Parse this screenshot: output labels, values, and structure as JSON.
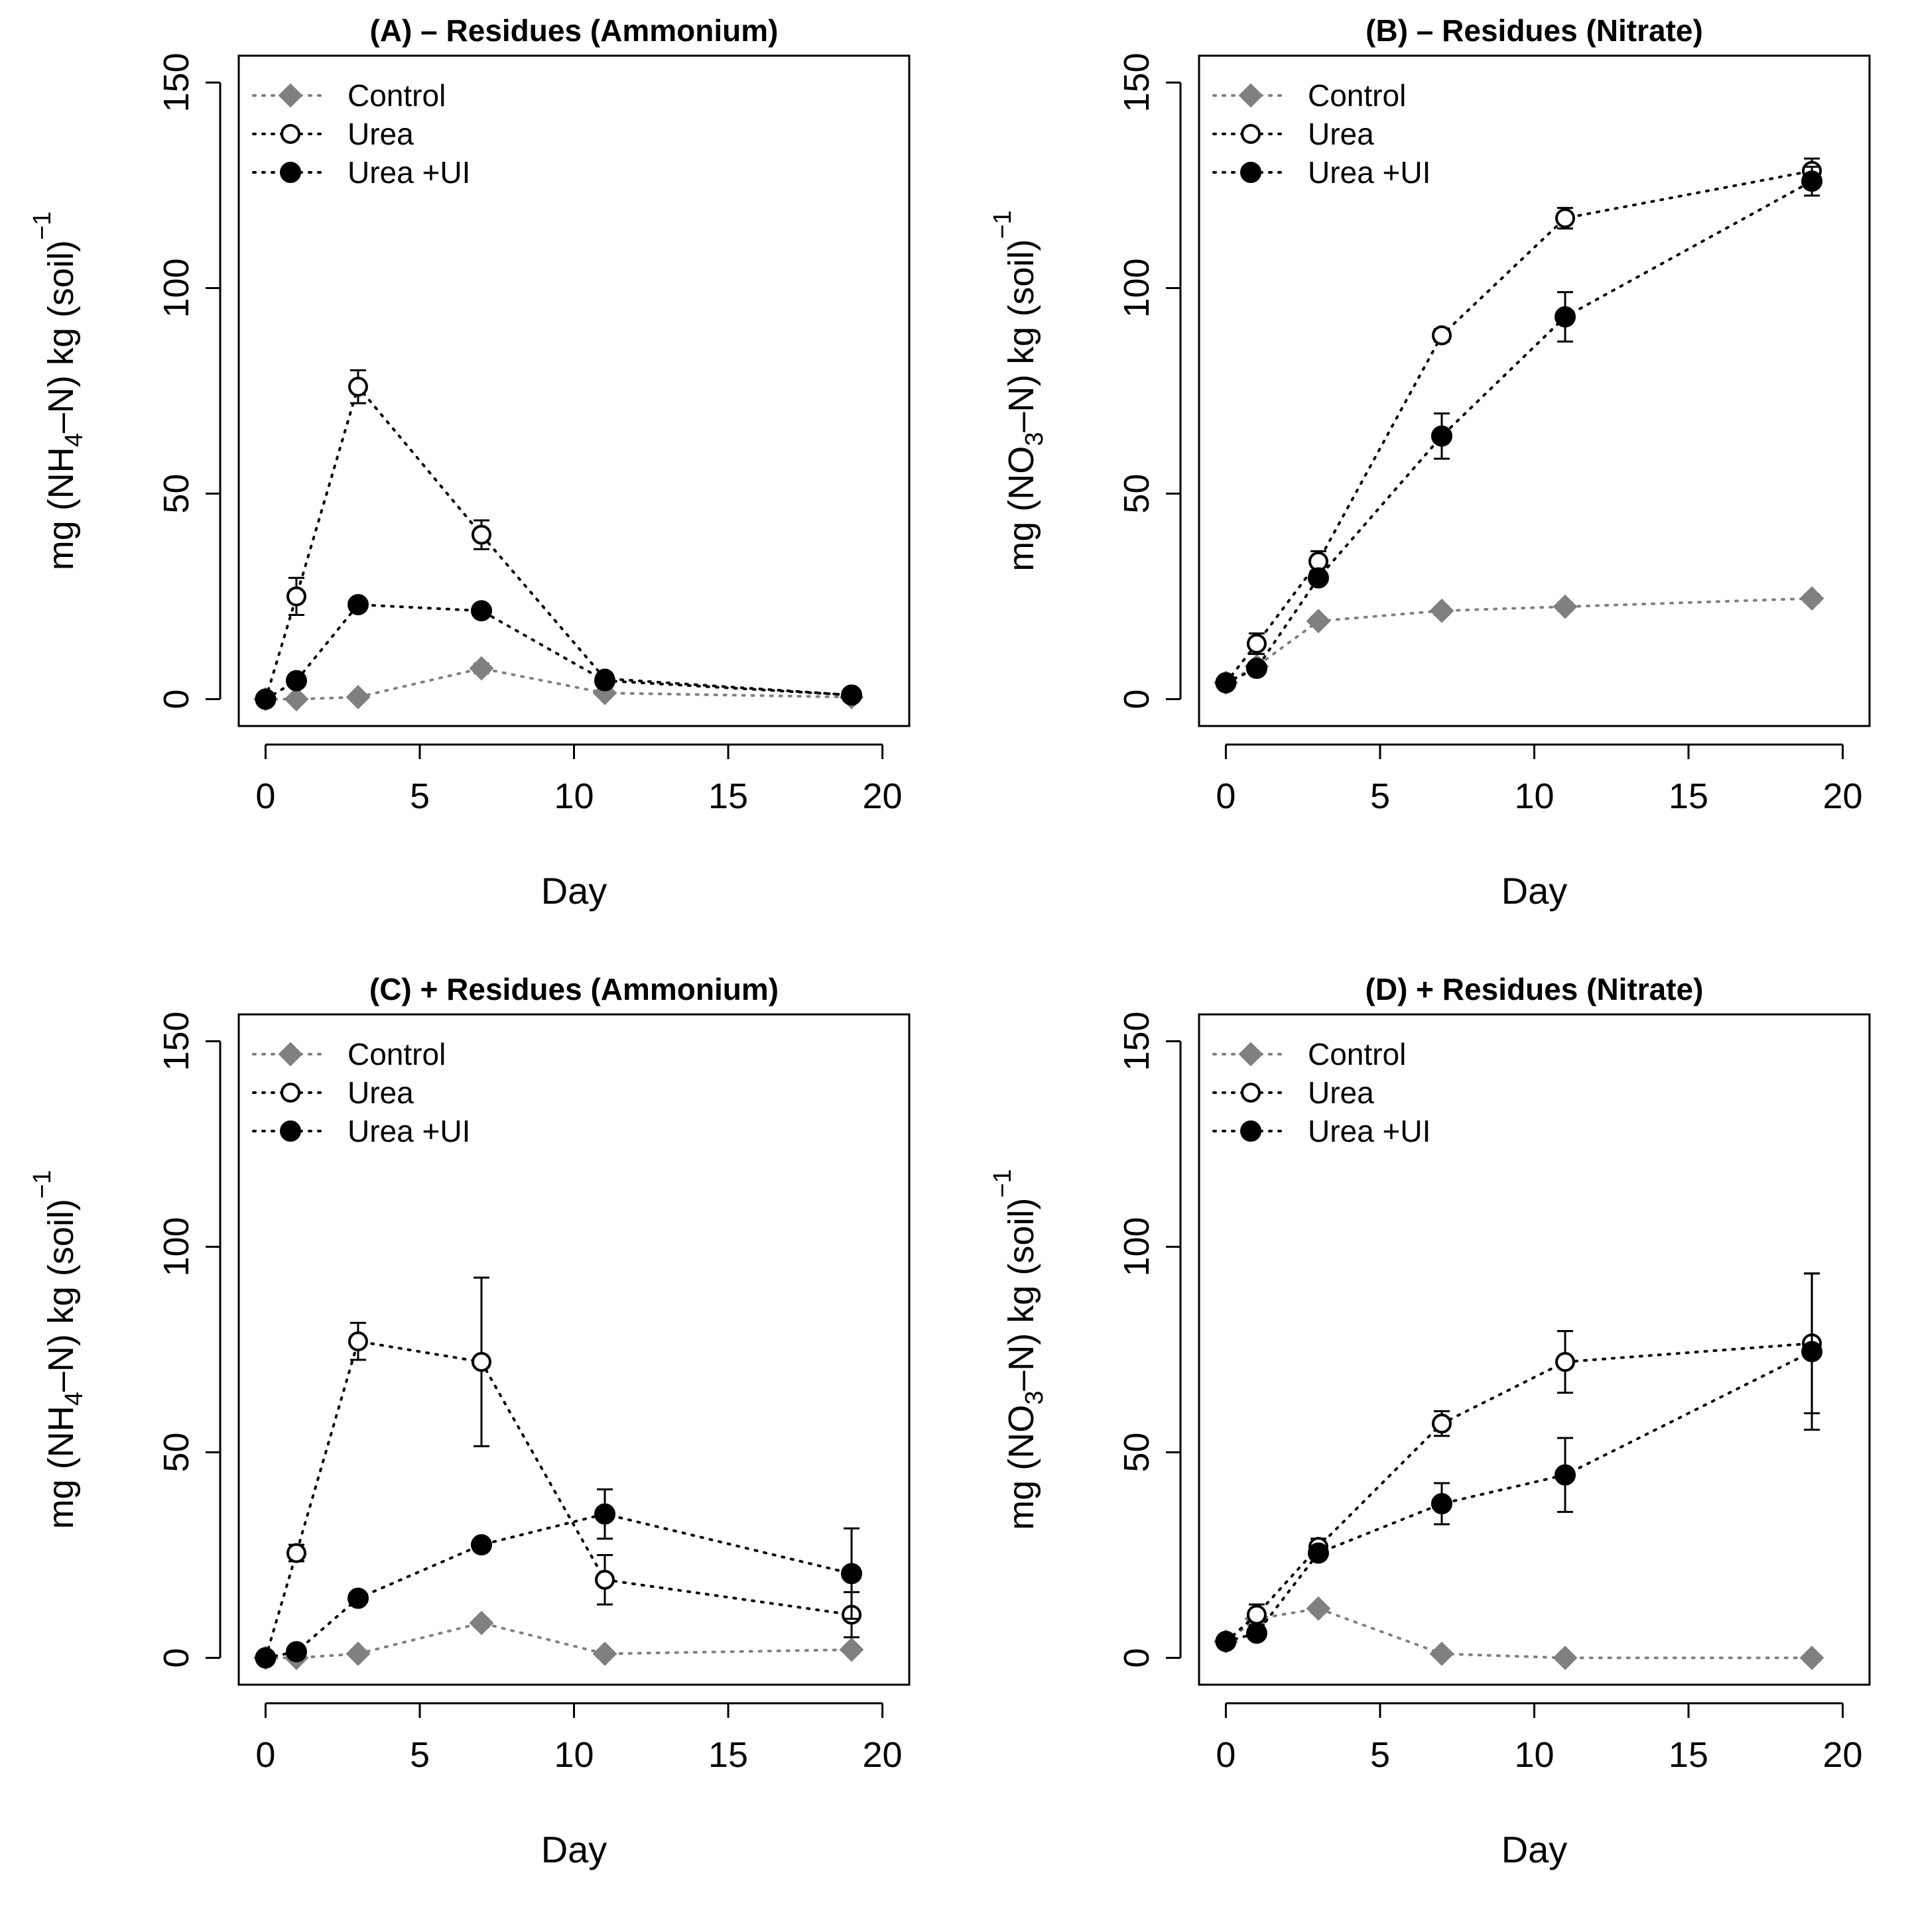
{
  "chart_data": [
    {
      "type": "line",
      "title": "(A) – Residues (Ammonium)",
      "xlabel": "Day",
      "ylabel": {
        "prefix": "mg (NH",
        "subscript": "4",
        "suffix": "–N) kg (soil)",
        "superscript": "−1"
      },
      "xlim": [
        0,
        20
      ],
      "ylim": [
        0,
        150
      ],
      "xticks": [
        "0",
        "5",
        "10",
        "15",
        "20"
      ],
      "yticks": [
        "0",
        "50",
        "100",
        "150"
      ],
      "legend_position": "top-left",
      "grid": false,
      "series": [
        {
          "name": "Control",
          "marker": "diamond",
          "color": "#808080",
          "x": [
            0,
            1,
            3,
            7,
            11,
            19
          ],
          "y": [
            0,
            0,
            0.5,
            7.5,
            1.5,
            0.5
          ],
          "err": [
            0.4,
            0.5,
            0.5,
            1.2,
            0.5,
            0.3
          ]
        },
        {
          "name": "Urea",
          "marker": "open-circle",
          "color": "#000000",
          "x": [
            0,
            1,
            3,
            7,
            11,
            19
          ],
          "y": [
            0,
            25,
            76,
            40,
            5,
            1
          ],
          "err": [
            0.5,
            4.5,
            4,
            3.5,
            1,
            0.5
          ]
        },
        {
          "name": "Urea +UI",
          "marker": "filled-circle",
          "color": "#000000",
          "x": [
            0,
            1,
            3,
            7,
            11,
            19
          ],
          "y": [
            0,
            4.5,
            23,
            21.5,
            4.5,
            1
          ],
          "err": [
            0.4,
            1,
            1.5,
            1.5,
            0.8,
            0.3
          ]
        }
      ]
    },
    {
      "type": "line",
      "title": "(B) – Residues (Nitrate)",
      "xlabel": "Day",
      "ylabel": {
        "prefix": "mg (NO",
        "subscript": "3",
        "suffix": "–N) kg (soil)",
        "superscript": "−1"
      },
      "xlim": [
        0,
        20
      ],
      "ylim": [
        0,
        150
      ],
      "xticks": [
        "0",
        "5",
        "10",
        "15",
        "20"
      ],
      "yticks": [
        "0",
        "50",
        "100",
        "150"
      ],
      "legend_position": "top-left",
      "grid": false,
      "series": [
        {
          "name": "Control",
          "marker": "diamond",
          "color": "#808080",
          "x": [
            0,
            1,
            3,
            7,
            11,
            19
          ],
          "y": [
            4,
            8,
            19,
            21.5,
            22.5,
            24.5
          ],
          "err": [
            0.5,
            1,
            1,
            1,
            1,
            1
          ]
        },
        {
          "name": "Urea",
          "marker": "open-circle",
          "color": "#000000",
          "x": [
            0,
            1,
            3,
            7,
            11,
            19
          ],
          "y": [
            4,
            13.5,
            33.5,
            88.5,
            117,
            128.5
          ],
          "err": [
            0.5,
            2.5,
            2.5,
            1.5,
            2.5,
            3
          ]
        },
        {
          "name": "Urea +UI",
          "marker": "filled-circle",
          "color": "#000000",
          "x": [
            0,
            1,
            3,
            7,
            11,
            19
          ],
          "y": [
            4,
            7.5,
            29.5,
            64,
            93,
            126
          ],
          "err": [
            0.5,
            1.5,
            1.5,
            5.5,
            6,
            3.5
          ]
        }
      ]
    },
    {
      "type": "line",
      "title": "(C) + Residues (Ammonium)",
      "xlabel": "Day",
      "ylabel": {
        "prefix": "mg (NH",
        "subscript": "4",
        "suffix": "–N) kg (soil)",
        "superscript": "−1"
      },
      "xlim": [
        0,
        20
      ],
      "ylim": [
        0,
        150
      ],
      "xticks": [
        "0",
        "5",
        "10",
        "15",
        "20"
      ],
      "yticks": [
        "0",
        "50",
        "100",
        "150"
      ],
      "legend_position": "top-left",
      "grid": false,
      "series": [
        {
          "name": "Control",
          "marker": "diamond",
          "color": "#808080",
          "x": [
            0,
            1,
            3,
            7,
            11,
            19
          ],
          "y": [
            0,
            0,
            1,
            8.5,
            1,
            2
          ],
          "err": [
            0.3,
            0.4,
            0.5,
            1,
            0.5,
            0.5
          ]
        },
        {
          "name": "Urea",
          "marker": "open-circle",
          "color": "#000000",
          "x": [
            0,
            1,
            3,
            7,
            11,
            19
          ],
          "y": [
            0,
            25.5,
            77,
            72,
            19,
            10.5
          ],
          "err": [
            0.5,
            2,
            4.5,
            20.5,
            6,
            5.5
          ]
        },
        {
          "name": "Urea +UI",
          "marker": "filled-circle",
          "color": "#000000",
          "x": [
            0,
            1,
            3,
            7,
            11,
            19
          ],
          "y": [
            0,
            1.5,
            14.5,
            27.5,
            35,
            20.5
          ],
          "err": [
            0.4,
            0.8,
            1.5,
            1.2,
            6,
            11
          ]
        }
      ]
    },
    {
      "type": "line",
      "title": "(D) + Residues (Nitrate)",
      "xlabel": "Day",
      "ylabel": {
        "prefix": "mg (NO",
        "subscript": "3",
        "suffix": "–N) kg (soil)",
        "superscript": "−1"
      },
      "xlim": [
        0,
        20
      ],
      "ylim": [
        0,
        150
      ],
      "xticks": [
        "0",
        "5",
        "10",
        "15",
        "20"
      ],
      "yticks": [
        "0",
        "50",
        "100",
        "150"
      ],
      "legend_position": "top-left",
      "grid": false,
      "series": [
        {
          "name": "Control",
          "marker": "diamond",
          "color": "#808080",
          "x": [
            0,
            1,
            3,
            7,
            11,
            19
          ],
          "y": [
            4,
            9.5,
            12,
            1,
            0,
            0
          ],
          "err": [
            0.5,
            1,
            1,
            0.5,
            0.3,
            0.3
          ]
        },
        {
          "name": "Urea",
          "marker": "open-circle",
          "color": "#000000",
          "x": [
            0,
            1,
            3,
            7,
            11,
            19
          ],
          "y": [
            4,
            10.5,
            27,
            57,
            72,
            76.5
          ],
          "err": [
            0.5,
            2.5,
            2,
            3,
            7.5,
            17
          ]
        },
        {
          "name": "Urea +UI",
          "marker": "filled-circle",
          "color": "#000000",
          "x": [
            0,
            1,
            3,
            7,
            11,
            19
          ],
          "y": [
            4,
            6,
            25.5,
            37.5,
            44.5,
            74.5
          ],
          "err": [
            0.5,
            1,
            1.5,
            5,
            9,
            19
          ]
        }
      ]
    }
  ]
}
